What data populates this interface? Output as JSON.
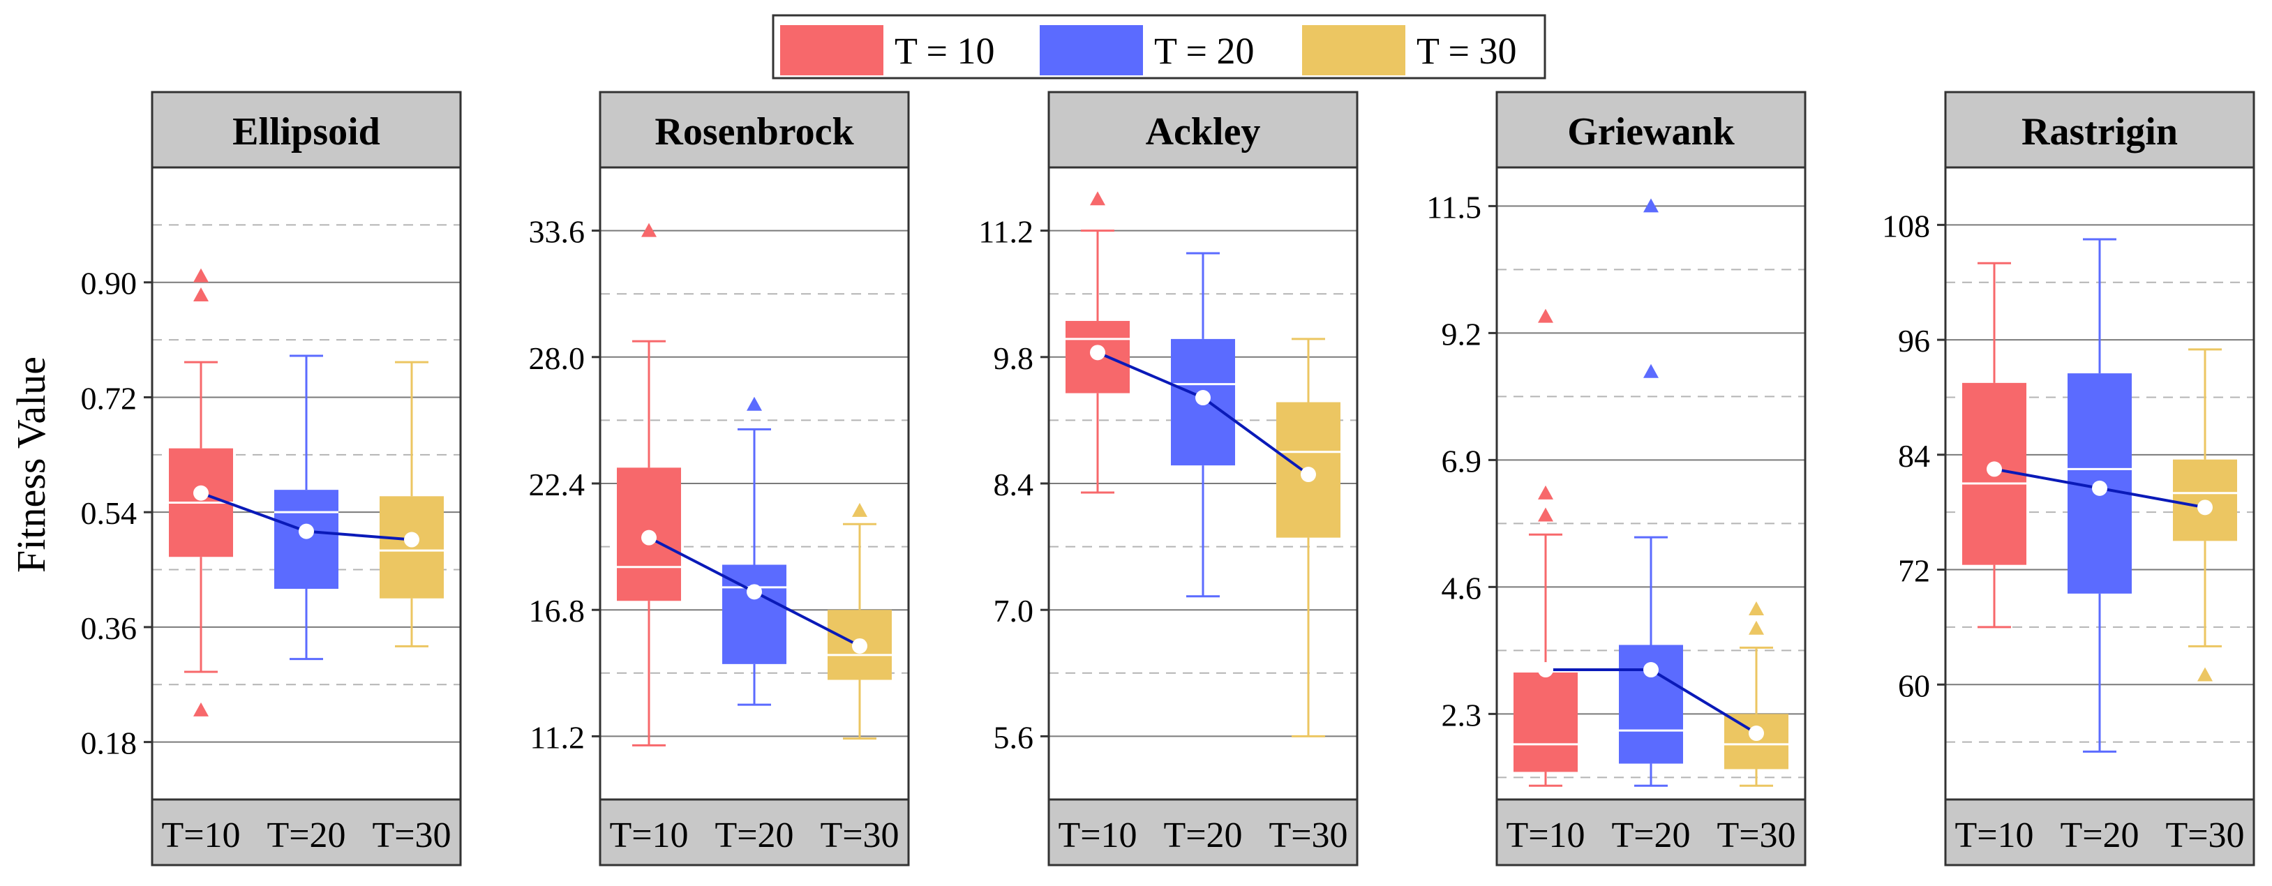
{
  "legend": [
    {
      "label": "T = 10",
      "color": "#f7686b"
    },
    {
      "label": "T = 20",
      "color": "#5b6bff"
    },
    {
      "label": "T = 30",
      "color": "#ecc662"
    }
  ],
  "ylabel": "Fitness Value",
  "colors": {
    "mean_line": "#0a1ab8",
    "header_bg": "#c8c8c8",
    "frame": "#333333"
  },
  "chart_data": [
    {
      "type": "box",
      "title": "Ellipsoid",
      "categories": [
        "T=10",
        "T=20",
        "T=30"
      ],
      "ylim": [
        0.09,
        1.08
      ],
      "yticks": [
        0.18,
        0.36,
        0.54,
        0.72,
        0.9
      ],
      "ytick_labels": [
        "0.18",
        "0.36",
        "0.54",
        "0.72",
        "0.90"
      ],
      "minor_gridlines": [
        0.27,
        0.45,
        0.63,
        0.81,
        0.99
      ],
      "boxes": [
        {
          "name": "T=10",
          "whisker_low": 0.29,
          "q1": 0.47,
          "median": 0.555,
          "q3": 0.64,
          "whisker_high": 0.775,
          "mean": 0.57,
          "outliers": [
            0.91,
            0.88,
            0.23
          ]
        },
        {
          "name": "T=20",
          "whisker_low": 0.31,
          "q1": 0.42,
          "median": 0.54,
          "q3": 0.575,
          "whisker_high": 0.785,
          "mean": 0.51,
          "outliers": []
        },
        {
          "name": "T=30",
          "whisker_low": 0.33,
          "q1": 0.405,
          "median": 0.48,
          "q3": 0.565,
          "whisker_high": 0.775,
          "mean": 0.497,
          "outliers": []
        }
      ]
    },
    {
      "type": "box",
      "title": "Rosenbrock",
      "categories": [
        "T=10",
        "T=20",
        "T=30"
      ],
      "ylim": [
        8.4,
        36.4
      ],
      "yticks": [
        11.2,
        16.8,
        22.4,
        28.0,
        33.6
      ],
      "ytick_labels": [
        "11.2",
        "16.8",
        "22.4",
        "28.0",
        "33.6"
      ],
      "minor_gridlines": [
        8.4,
        14.0,
        19.6,
        25.2,
        30.8
      ],
      "boxes": [
        {
          "name": "T=10",
          "whisker_low": 10.8,
          "q1": 17.2,
          "median": 18.7,
          "q3": 23.1,
          "whisker_high": 28.7,
          "mean": 20.0,
          "outliers": [
            33.6
          ]
        },
        {
          "name": "T=20",
          "whisker_low": 12.6,
          "q1": 14.4,
          "median": 17.8,
          "q3": 18.8,
          "whisker_high": 24.8,
          "mean": 17.6,
          "outliers": [
            25.9
          ]
        },
        {
          "name": "T=30",
          "whisker_low": 11.1,
          "q1": 13.7,
          "median": 14.8,
          "q3": 16.8,
          "whisker_high": 20.6,
          "mean": 15.2,
          "outliers": [
            21.2
          ]
        }
      ]
    },
    {
      "type": "box",
      "title": "Ackley",
      "categories": [
        "T=10",
        "T=20",
        "T=30"
      ],
      "ylim": [
        4.9,
        11.9
      ],
      "yticks": [
        5.6,
        7.0,
        8.4,
        9.8,
        11.2
      ],
      "ytick_labels": [
        "5.6",
        "7.0",
        "8.4",
        "9.8",
        "11.2"
      ],
      "minor_gridlines": [
        6.3,
        7.7,
        9.1,
        10.5,
        11.9
      ],
      "boxes": [
        {
          "name": "T=10",
          "whisker_low": 8.3,
          "q1": 9.4,
          "median": 10.0,
          "q3": 10.2,
          "whisker_high": 11.2,
          "mean": 9.85,
          "outliers": [
            11.55
          ]
        },
        {
          "name": "T=20",
          "whisker_low": 7.15,
          "q1": 8.6,
          "median": 9.5,
          "q3": 10.0,
          "whisker_high": 10.95,
          "mean": 9.35,
          "outliers": []
        },
        {
          "name": "T=30",
          "whisker_low": 5.6,
          "q1": 7.8,
          "median": 8.75,
          "q3": 9.3,
          "whisker_high": 10.0,
          "mean": 8.5,
          "outliers": []
        }
      ]
    },
    {
      "type": "box",
      "title": "Griewank",
      "categories": [
        "T=10",
        "T=20",
        "T=30"
      ],
      "ylim": [
        0.75,
        12.2
      ],
      "yticks": [
        2.3,
        4.6,
        6.9,
        9.2,
        11.5
      ],
      "ytick_labels": [
        "2.3",
        "4.6",
        "6.9",
        "9.2",
        "11.5"
      ],
      "minor_gridlines": [
        1.15,
        3.45,
        5.75,
        8.05,
        10.35
      ],
      "boxes": [
        {
          "name": "T=10",
          "whisker_low": 1.0,
          "q1": 1.25,
          "median": 1.75,
          "q3": 3.05,
          "whisker_high": 5.55,
          "mean": 3.1,
          "outliers": [
            9.5,
            6.3,
            5.9
          ]
        },
        {
          "name": "T=20",
          "whisker_low": 1.0,
          "q1": 1.4,
          "median": 2.0,
          "q3": 3.55,
          "whisker_high": 5.5,
          "mean": 3.1,
          "outliers": [
            11.5,
            8.5
          ]
        },
        {
          "name": "T=30",
          "whisker_low": 1.0,
          "q1": 1.3,
          "median": 1.75,
          "q3": 2.3,
          "whisker_high": 3.5,
          "mean": 1.95,
          "outliers": [
            4.2,
            3.85
          ]
        }
      ]
    },
    {
      "type": "box",
      "title": "Rastrigin",
      "categories": [
        "T=10",
        "T=20",
        "T=30"
      ],
      "ylim": [
        48,
        114
      ],
      "yticks": [
        60,
        72,
        84,
        96,
        108
      ],
      "ytick_labels": [
        "60",
        "72",
        "84",
        "96",
        "108"
      ],
      "minor_gridlines": [
        54,
        66,
        78,
        90,
        102
      ],
      "boxes": [
        {
          "name": "T=10",
          "whisker_low": 66,
          "q1": 72.5,
          "median": 81,
          "q3": 91.5,
          "whisker_high": 104,
          "mean": 82.5,
          "outliers": []
        },
        {
          "name": "T=20",
          "whisker_low": 53,
          "q1": 69.5,
          "median": 82.5,
          "q3": 92.5,
          "whisker_high": 106.5,
          "mean": 80.5,
          "outliers": []
        },
        {
          "name": "T=30",
          "whisker_low": 64,
          "q1": 75,
          "median": 80,
          "q3": 83.5,
          "whisker_high": 95,
          "mean": 78.5,
          "outliers": [
            61
          ]
        }
      ]
    }
  ]
}
